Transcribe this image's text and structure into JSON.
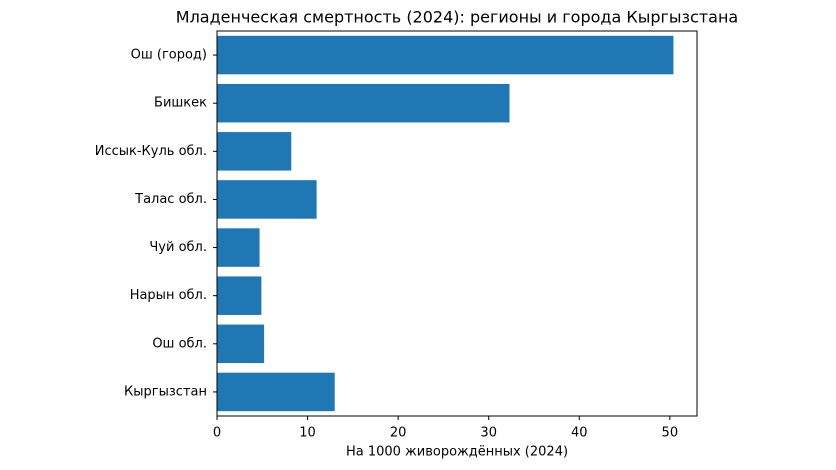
{
  "chart_data": {
    "type": "barh",
    "title": "Младенческая смертность (2024): регионы и города Кыргызстана",
    "xlabel": "На 1000 живорождённых (2024)",
    "categories": [
      "Ош (город)",
      "Бишкек",
      "Иссык-Куль обл.",
      "Талас обл.",
      "Чуй обл.",
      "Нарын обл.",
      "Ош обл.",
      "Кыргызстан"
    ],
    "values": [
      50.4,
      32.3,
      8.2,
      11.0,
      4.7,
      4.9,
      5.2,
      13.0
    ],
    "color": "#1f77b4",
    "xlim": [
      0,
      53
    ],
    "xticks": [
      0,
      10,
      20,
      30,
      40,
      50
    ],
    "grid": false
  }
}
